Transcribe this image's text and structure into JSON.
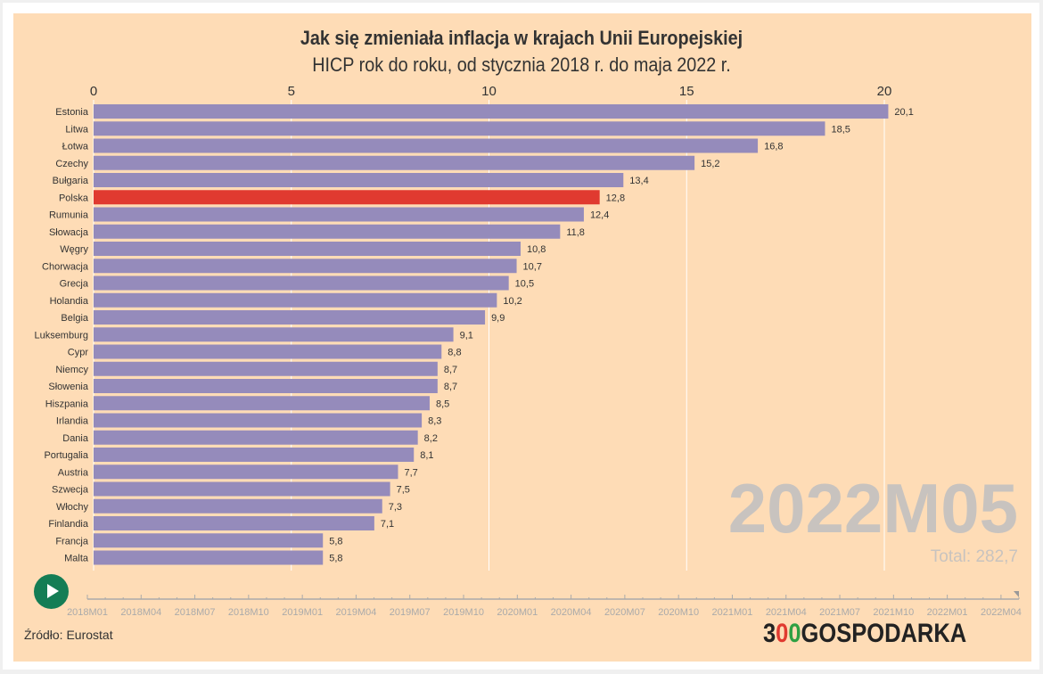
{
  "chart_data": {
    "type": "bar",
    "title": "Jak się zmieniała inflacja w krajach Unii Europejskiej",
    "subtitle": "HICP rok do roku, od stycznia 2018 r. do maja 2022 r.",
    "xlim": [
      0,
      20
    ],
    "xticks": [
      0,
      5,
      10,
      15,
      20
    ],
    "categories": [
      "Estonia",
      "Litwa",
      "Łotwa",
      "Czechy",
      "Bułgaria",
      "Polska",
      "Rumunia",
      "Słowacja",
      "Węgry",
      "Chorwacja",
      "Grecja",
      "Holandia",
      "Belgia",
      "Luksemburg",
      "Cypr",
      "Niemcy",
      "Słowenia",
      "Hiszpania",
      "Irlandia",
      "Dania",
      "Portugalia",
      "Austria",
      "Szwecja",
      "Włochy",
      "Finlandia",
      "Francja",
      "Malta"
    ],
    "values": [
      20.1,
      18.5,
      16.8,
      15.2,
      13.4,
      12.8,
      12.4,
      11.8,
      10.8,
      10.7,
      10.5,
      10.2,
      9.9,
      9.1,
      8.8,
      8.7,
      8.7,
      8.5,
      8.3,
      8.2,
      8.1,
      7.7,
      7.5,
      7.3,
      7.1,
      5.8,
      5.8
    ],
    "value_labels": [
      "20,1",
      "18,5",
      "16,8",
      "15,2",
      "13,4",
      "12,8",
      "12,4",
      "11,8",
      "10,8",
      "10,7",
      "10,5",
      "10,2",
      "9,9",
      "9,1",
      "8,8",
      "8,7",
      "8,7",
      "8,5",
      "8,3",
      "8,2",
      "8,1",
      "7,7",
      "7,5",
      "7,3",
      "7,1",
      "5,8",
      "5,8"
    ],
    "highlight": "Polska",
    "colors": {
      "bar": "#958bbb",
      "highlight": "#e03a30",
      "background": "#fedcb6"
    },
    "period": "2022M05",
    "total": "Total: 282,7",
    "timeline_labels": [
      "2018M01",
      "2018M04",
      "2018M07",
      "2018M10",
      "2019M01",
      "2019M04",
      "2019M07",
      "2019M10",
      "2020M01",
      "2020M04",
      "2020M07",
      "2020M10",
      "2021M01",
      "2021M04",
      "2021M07",
      "2021M10",
      "2022M01",
      "2022M04"
    ]
  },
  "footer": {
    "source": "Źródło: Eurostat",
    "logo": "300GOSPODARKA"
  }
}
